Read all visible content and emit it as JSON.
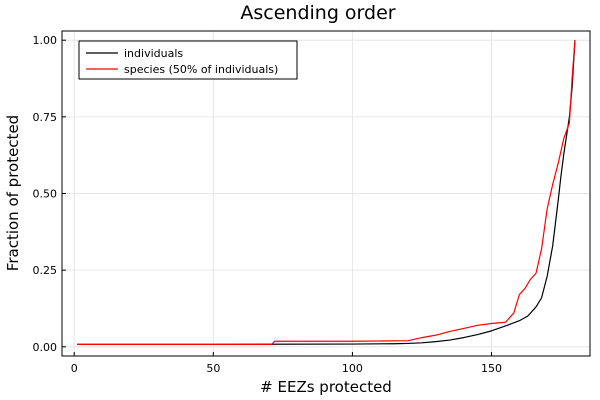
{
  "chart_data": {
    "type": "line",
    "title": "Ascending order",
    "xlabel": "# EEZs protected",
    "ylabel": "Fraction of protected",
    "xlim": [
      1,
      180
    ],
    "ylim": [
      0,
      1
    ],
    "x_ticks": [
      0,
      50,
      100,
      150
    ],
    "y_ticks": [
      0.0,
      0.25,
      0.5,
      0.75,
      1.0
    ],
    "x_tick_labels": [
      "0",
      "50",
      "100",
      "150"
    ],
    "y_tick_labels": [
      "0.00",
      "0.25",
      "0.50",
      "0.75",
      "1.00"
    ],
    "grid": true,
    "legend_position": "top-left",
    "series": [
      {
        "name": "individuals",
        "color": "#000000",
        "points": [
          [
            1,
            0.008
          ],
          [
            50,
            0.008
          ],
          [
            100,
            0.009
          ],
          [
            115,
            0.01
          ],
          [
            120,
            0.011
          ],
          [
            125,
            0.013
          ],
          [
            130,
            0.017
          ],
          [
            135,
            0.022
          ],
          [
            140,
            0.03
          ],
          [
            145,
            0.04
          ],
          [
            150,
            0.052
          ],
          [
            155,
            0.068
          ],
          [
            160,
            0.085
          ],
          [
            163,
            0.1
          ],
          [
            166,
            0.13
          ],
          [
            168,
            0.16
          ],
          [
            170,
            0.23
          ],
          [
            172,
            0.33
          ],
          [
            174,
            0.48
          ],
          [
            175,
            0.56
          ],
          [
            176,
            0.63
          ],
          [
            177,
            0.69
          ],
          [
            178,
            0.75
          ],
          [
            179,
            0.85
          ],
          [
            180,
            1.0
          ]
        ]
      },
      {
        "name": "species (50% of individuals)",
        "color": "#ff0000",
        "points": [
          [
            1,
            0.008
          ],
          [
            71,
            0.008
          ],
          [
            72,
            0.018
          ],
          [
            100,
            0.018
          ],
          [
            120,
            0.02
          ],
          [
            125,
            0.03
          ],
          [
            130,
            0.038
          ],
          [
            135,
            0.05
          ],
          [
            140,
            0.06
          ],
          [
            145,
            0.07
          ],
          [
            150,
            0.076
          ],
          [
            155,
            0.08
          ],
          [
            158,
            0.11
          ],
          [
            160,
            0.17
          ],
          [
            162,
            0.19
          ],
          [
            164,
            0.22
          ],
          [
            166,
            0.24
          ],
          [
            168,
            0.32
          ],
          [
            170,
            0.45
          ],
          [
            172,
            0.53
          ],
          [
            174,
            0.6
          ],
          [
            176,
            0.68
          ],
          [
            178,
            0.73
          ],
          [
            179,
            0.88
          ],
          [
            180,
            1.0
          ]
        ]
      }
    ]
  }
}
